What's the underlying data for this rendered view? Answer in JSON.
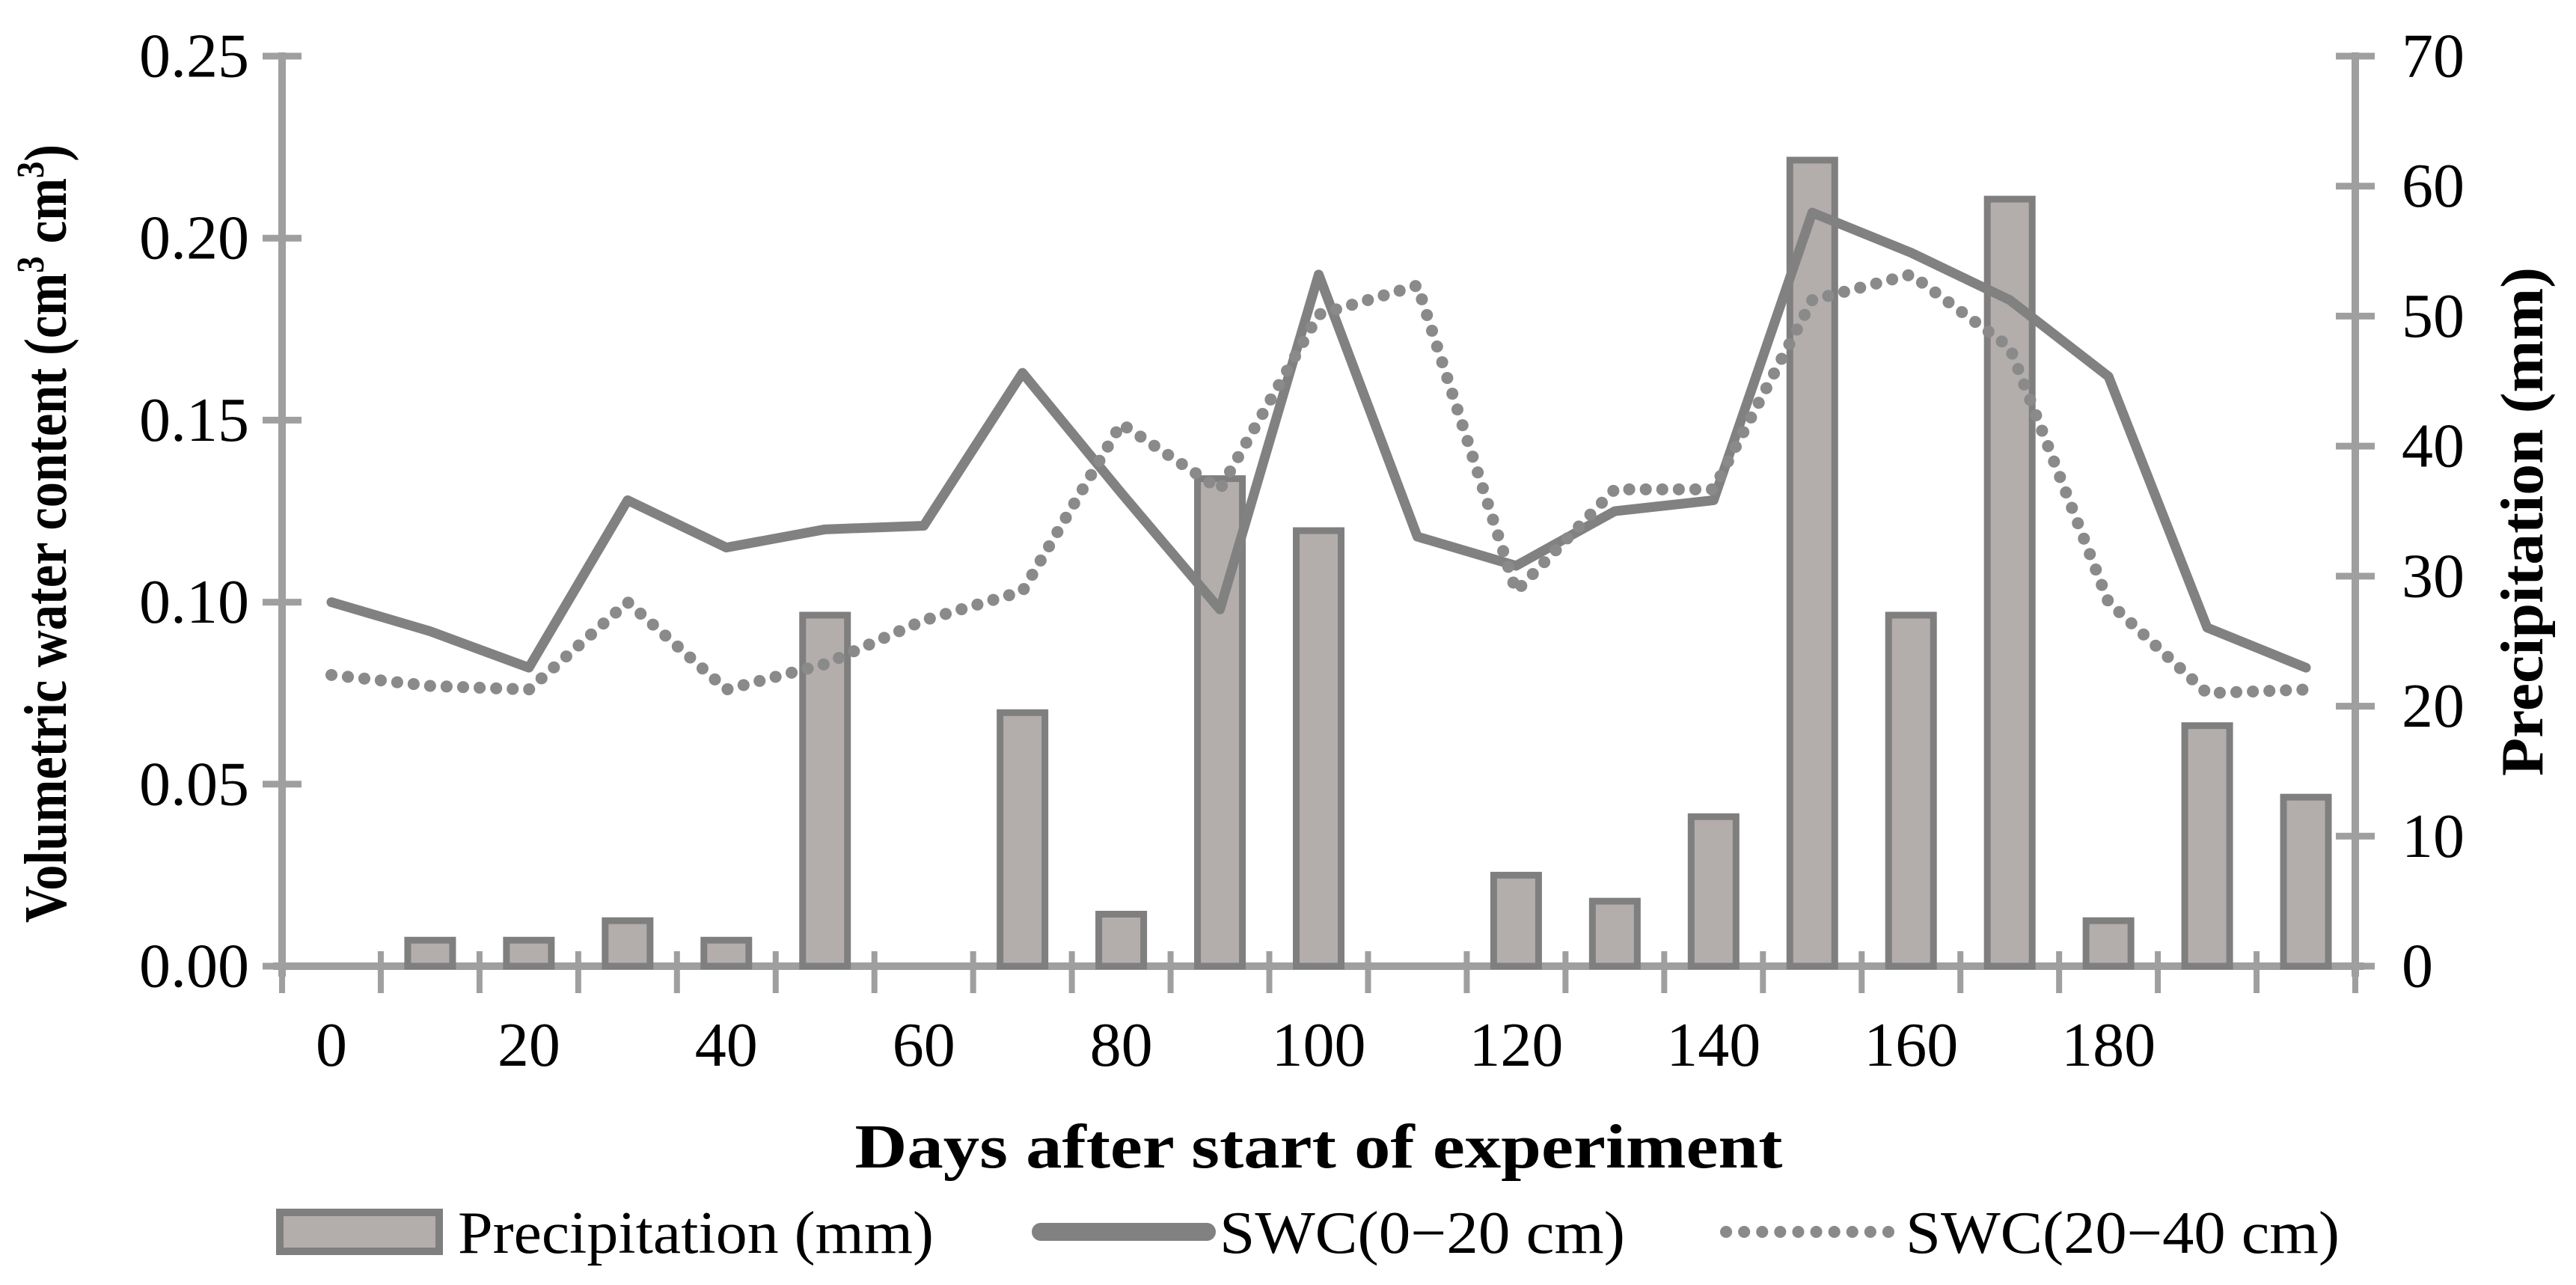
{
  "chart_data": {
    "type": "bar+line",
    "x": [
      0,
      10,
      20,
      30,
      40,
      50,
      60,
      70,
      80,
      90,
      100,
      110,
      120,
      130,
      140,
      150,
      160,
      170,
      180,
      190,
      200
    ],
    "series": [
      {
        "name": "Precipitation (mm)",
        "kind": "bar",
        "axis": "right",
        "values": [
          0,
          2,
          2,
          3.5,
          2,
          27,
          0,
          19.5,
          4,
          37.5,
          33.5,
          0,
          7,
          5,
          11.5,
          62,
          27,
          59,
          3.5,
          18.5,
          13
        ]
      },
      {
        "name": "SWC(0−20 cm)",
        "kind": "line-solid",
        "axis": "left",
        "values": [
          0.1,
          0.092,
          0.082,
          0.128,
          0.115,
          0.12,
          0.121,
          0.163,
          0.13,
          0.098,
          0.19,
          0.118,
          0.11,
          0.125,
          0.128,
          0.207,
          0.196,
          0.183,
          0.162,
          0.093,
          0.082
        ]
      },
      {
        "name": "SWC(20−40 cm)",
        "kind": "line-dotted",
        "axis": "left",
        "values": [
          0.08,
          0.077,
          0.076,
          0.1,
          0.076,
          0.083,
          0.095,
          0.103,
          0.149,
          0.131,
          0.179,
          0.187,
          0.103,
          0.131,
          0.131,
          0.183,
          0.19,
          0.17,
          0.1,
          0.075,
          0.076
        ]
      }
    ],
    "title": "",
    "xlabel": "Days after start of experiment",
    "ylabel_left_parts": [
      {
        "text": "Volumetric water content (cm"
      },
      {
        "text": "3",
        "sup": true
      },
      {
        "text": " cm"
      },
      {
        "text": "3",
        "sup": true
      },
      {
        "text": ")"
      }
    ],
    "ylabel_right": "Precipitation (mm)",
    "axis_left": {
      "min": 0,
      "max": 0.25,
      "step": 0.05,
      "decimals": 2,
      "tick_labels": [
        "0.00",
        "0.05",
        "0.10",
        "0.15",
        "0.20",
        "0.25"
      ]
    },
    "axis_right": {
      "min": 0,
      "max": 70,
      "step": 10,
      "tick_labels": [
        "0",
        "10",
        "20",
        "30",
        "40",
        "50",
        "60",
        "70"
      ]
    },
    "axis_x": {
      "labeled_days": [
        0,
        20,
        40,
        60,
        80,
        100,
        120,
        140,
        160,
        180
      ],
      "minor_tick_every": 10,
      "categories_count": 21
    },
    "grid": "off",
    "legend": {
      "position": "bottom",
      "items": [
        {
          "label": "Precipitation (mm)",
          "swatch": "bar"
        },
        {
          "label": "SWC(0−20 cm)",
          "swatch": "solid-line"
        },
        {
          "label": "SWC(20−40 cm)",
          "swatch": "dotted-line"
        }
      ]
    },
    "colors": {
      "bar_fill": "#b3aeac",
      "bar_stroke": "#7f7f7f",
      "line_solid": "#818181",
      "line_dotted": "#8a8a8a",
      "axis": "#9f9f9f",
      "text": "#000000",
      "background": "#ffffff"
    }
  }
}
